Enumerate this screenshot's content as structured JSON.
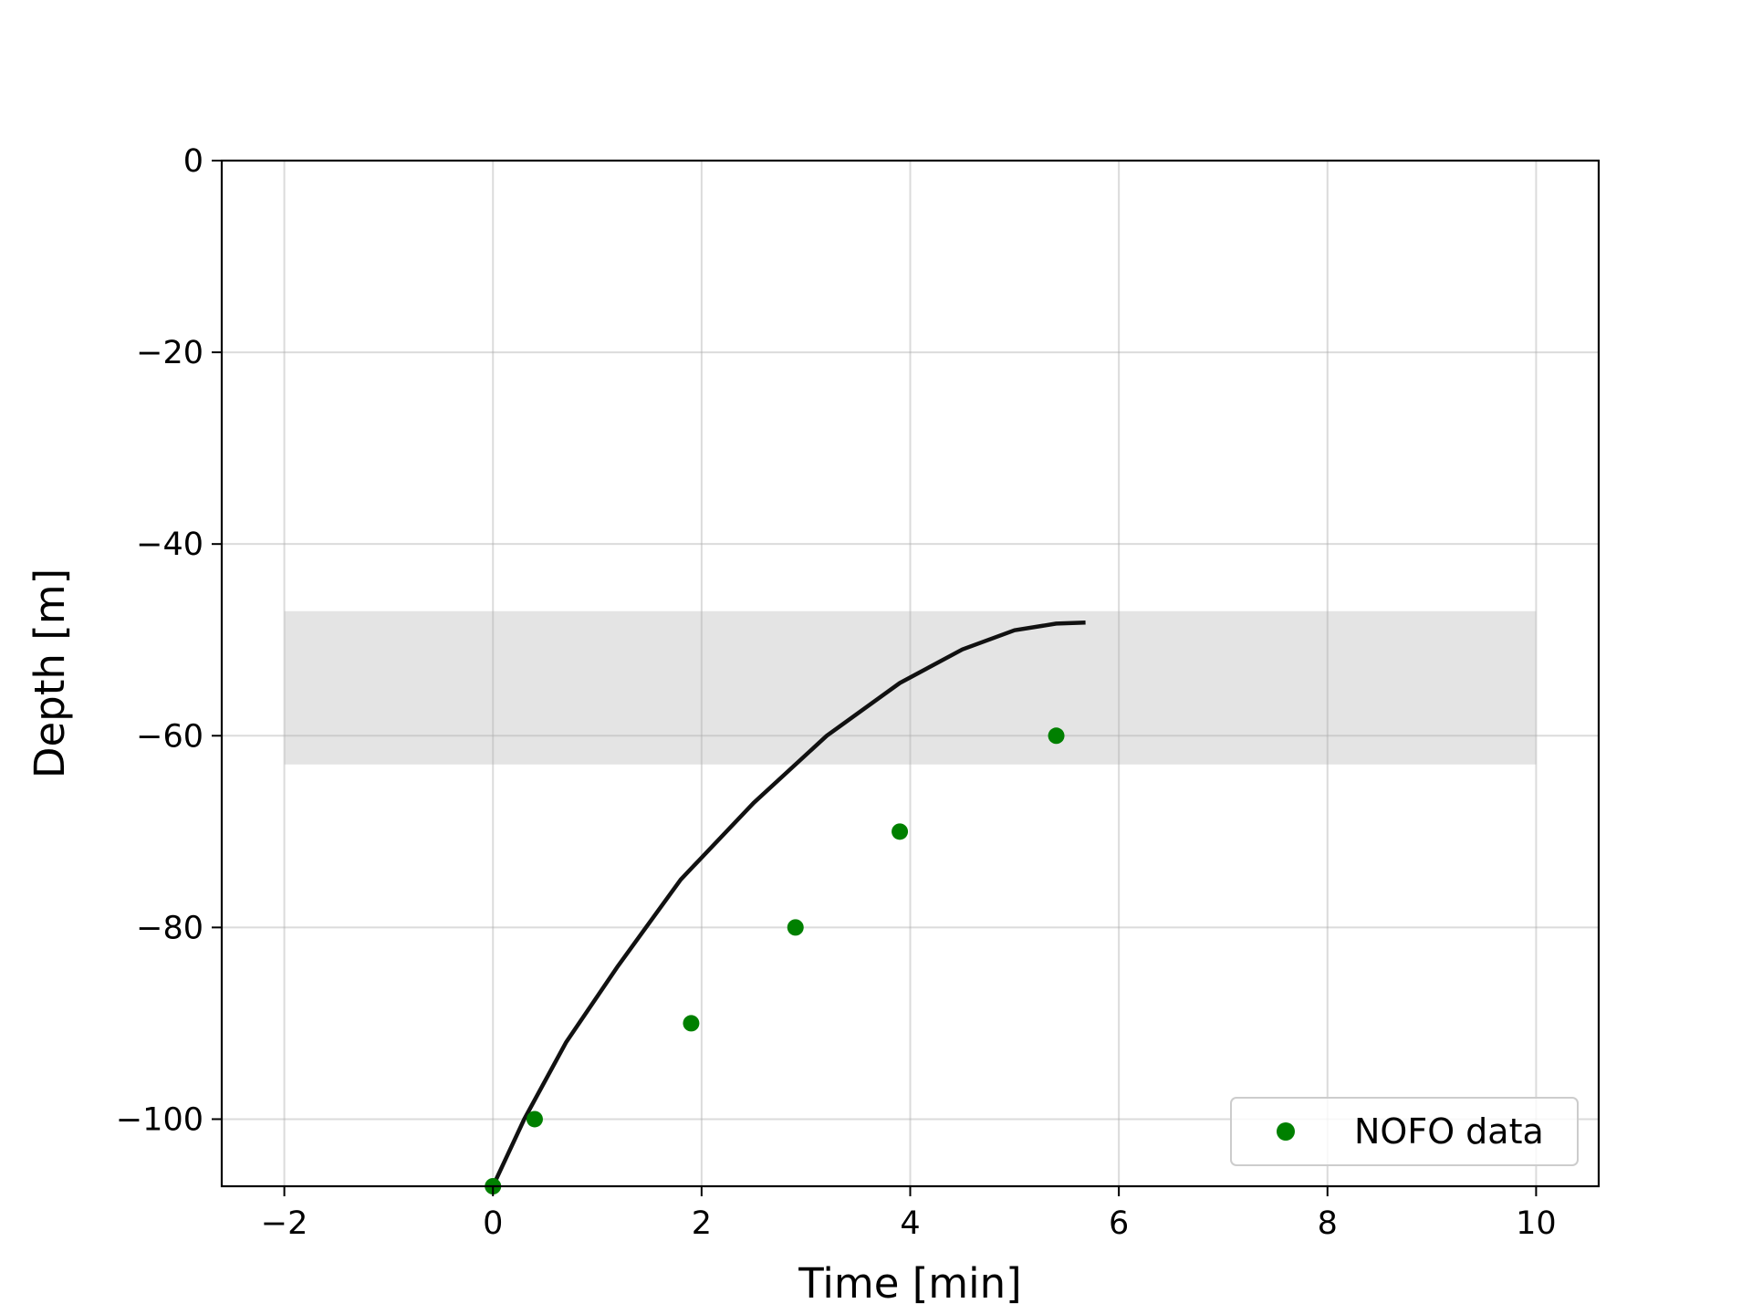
{
  "chart_data": {
    "type": "scatter",
    "title": "",
    "xlabel": "Time [min]",
    "ylabel": "Depth [m]",
    "xlim": [
      -2.6,
      10.6
    ],
    "ylim": [
      -107,
      0
    ],
    "xticks": [
      -2,
      0,
      2,
      4,
      6,
      8,
      10
    ],
    "yticks": [
      0,
      -20,
      -40,
      -60,
      -80,
      -100
    ],
    "xtick_labels": [
      "−2",
      "0",
      "2",
      "4",
      "6",
      "8",
      "10"
    ],
    "ytick_labels": [
      "0",
      "−20",
      "−40",
      "−60",
      "−80",
      "−100"
    ],
    "grid": true,
    "legend_position": "lower-right",
    "band": {
      "x": [
        -2,
        10
      ],
      "y": [
        -63,
        -47
      ],
      "color": "#e4e4e4"
    },
    "series": [
      {
        "name": "NOFO data",
        "kind": "scatter",
        "color": "#008000",
        "x": [
          0,
          0.4,
          1.9,
          2.9,
          3.9,
          5.4
        ],
        "y": [
          -107,
          -100,
          -90,
          -80,
          -70,
          -60
        ]
      },
      {
        "kind": "line",
        "color": "#111111",
        "x": [
          0,
          0.3,
          0.7,
          1.2,
          1.8,
          2.5,
          3.2,
          3.9,
          4.5,
          5.0,
          5.4,
          5.68
        ],
        "y": [
          -107,
          -100,
          -92,
          -84,
          -75,
          -67,
          -60,
          -54.5,
          -51,
          -49,
          -48.3,
          -48.2
        ]
      }
    ]
  }
}
